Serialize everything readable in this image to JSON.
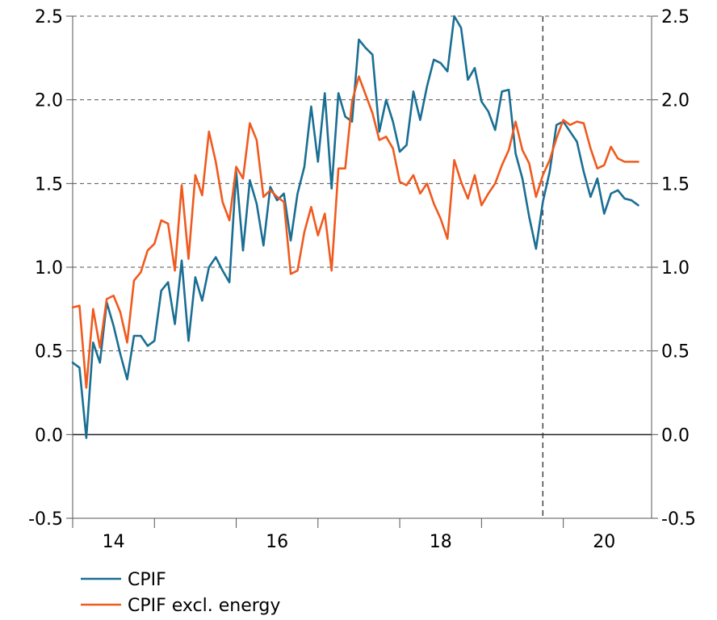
{
  "chart_data": {
    "type": "line",
    "x_start": 2013.5,
    "x_step": 0.08333333,
    "xlim": [
      2013.5,
      2020.58
    ],
    "ylim": [
      -0.5,
      2.5
    ],
    "ylabel_left": "",
    "ylabel_right": "",
    "xticks": [
      {
        "value": 2014,
        "label": "14"
      },
      {
        "value": 2016,
        "label": "16"
      },
      {
        "value": 2018,
        "label": "18"
      },
      {
        "value": 2020,
        "label": "20"
      }
    ],
    "yticks": [
      {
        "value": 2.5,
        "label": "2.5"
      },
      {
        "value": 2.0,
        "label": "2.0"
      },
      {
        "value": 1.5,
        "label": "1.5"
      },
      {
        "value": 1.0,
        "label": "1.0"
      },
      {
        "value": 0.5,
        "label": "0.5"
      },
      {
        "value": 0.0,
        "label": "0.0"
      },
      {
        "value": -0.5,
        "label": "-0.5"
      }
    ],
    "grid": "horizontal dashed",
    "forecast_divider_x": 2019.25,
    "legend_position": "bottom-left",
    "colors": {
      "cpif": "#1a6e93",
      "cpif_ex_energy": "#f05a1e"
    },
    "series": [
      {
        "name": "CPIF",
        "key": "cpif",
        "values": [
          0.43,
          0.4,
          -0.02,
          0.55,
          0.43,
          0.79,
          0.65,
          0.48,
          0.33,
          0.59,
          0.59,
          0.53,
          0.56,
          0.86,
          0.91,
          0.66,
          1.04,
          0.56,
          0.94,
          0.8,
          1.0,
          1.06,
          0.98,
          0.91,
          1.57,
          1.1,
          1.52,
          1.38,
          1.13,
          1.48,
          1.4,
          1.44,
          1.16,
          1.44,
          1.6,
          1.96,
          1.63,
          2.04,
          1.47,
          2.04,
          1.9,
          1.87,
          2.36,
          2.31,
          2.27,
          1.81,
          2.0,
          1.87,
          1.69,
          1.73,
          2.05,
          1.88,
          2.08,
          2.24,
          2.22,
          2.17,
          2.5,
          2.43,
          2.12,
          2.19,
          1.99,
          1.93,
          1.82,
          2.05,
          2.06,
          1.68,
          1.53,
          1.3,
          1.11,
          1.39,
          1.57,
          1.85,
          1.87,
          1.81,
          1.75,
          1.57,
          1.42,
          1.53,
          1.32,
          1.44,
          1.46,
          1.41,
          1.4,
          1.37
        ]
      },
      {
        "name": "CPIF excl. energy",
        "key": "cpif_ex_energy",
        "values": [
          0.76,
          0.77,
          0.28,
          0.75,
          0.52,
          0.81,
          0.83,
          0.73,
          0.55,
          0.92,
          0.97,
          1.1,
          1.14,
          1.28,
          1.26,
          0.98,
          1.49,
          1.05,
          1.55,
          1.43,
          1.81,
          1.63,
          1.39,
          1.28,
          1.6,
          1.53,
          1.86,
          1.76,
          1.42,
          1.46,
          1.42,
          1.39,
          0.96,
          0.98,
          1.21,
          1.36,
          1.19,
          1.32,
          0.98,
          1.59,
          1.59,
          1.99,
          2.14,
          2.03,
          1.92,
          1.76,
          1.78,
          1.71,
          1.51,
          1.49,
          1.55,
          1.44,
          1.5,
          1.38,
          1.29,
          1.17,
          1.64,
          1.51,
          1.41,
          1.55,
          1.37,
          1.44,
          1.5,
          1.61,
          1.7,
          1.87,
          1.7,
          1.62,
          1.42,
          1.55,
          1.64,
          1.77,
          1.88,
          1.85,
          1.87,
          1.86,
          1.71,
          1.59,
          1.61,
          1.72,
          1.65,
          1.63,
          1.63,
          1.63
        ]
      }
    ]
  }
}
